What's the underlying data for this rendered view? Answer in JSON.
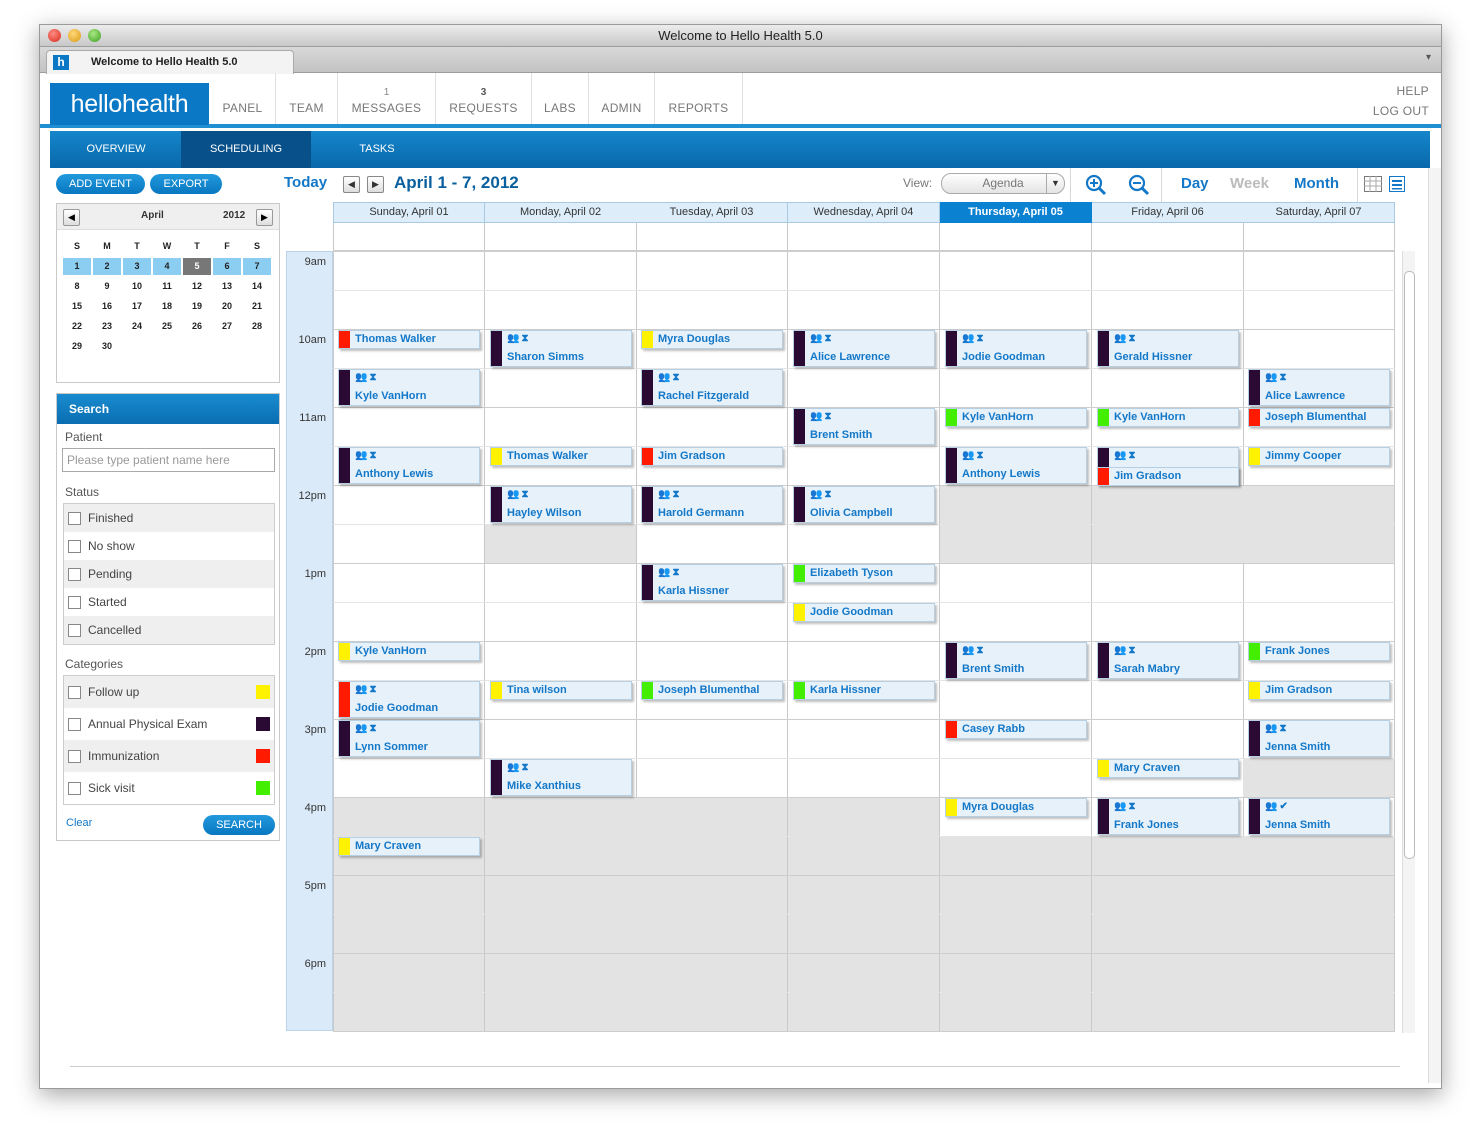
{
  "window": {
    "title": "Welcome to Hello Health 5.0",
    "tab_label": "Welcome to Hello Health 5.0",
    "favicon": "h"
  },
  "nav": {
    "logo": "hellohealth",
    "items": [
      {
        "label": "PANEL",
        "count": ""
      },
      {
        "label": "TEAM",
        "count": ""
      },
      {
        "label": "MESSAGES",
        "count": "1"
      },
      {
        "label": "REQUESTS",
        "count": "3"
      },
      {
        "label": "LABS",
        "count": ""
      },
      {
        "label": "ADMIN",
        "count": ""
      },
      {
        "label": "REPORTS",
        "count": ""
      }
    ],
    "help": "HELP",
    "logout": "LOG OUT"
  },
  "subnav": {
    "tabs": [
      "OVERVIEW",
      "SCHEDULING",
      "TASKS"
    ],
    "active": "SCHEDULING"
  },
  "actions": {
    "add_event": "ADD EVENT",
    "export": "EXPORT"
  },
  "toolbar": {
    "today": "Today",
    "range": "April 1 - 7, 2012",
    "view_label": "View:",
    "view_value": "Agenda",
    "views": [
      "Day",
      "Week",
      "Month"
    ],
    "active_view": "Week",
    "zoom_in_icon": "zoom-in-icon",
    "zoom_out_icon": "zoom-out-icon"
  },
  "minical": {
    "month": "April",
    "year": "2012",
    "weekdays": [
      "S",
      "M",
      "T",
      "W",
      "T",
      "F",
      "S"
    ],
    "weeks": [
      [
        "1",
        "2",
        "3",
        "4",
        "5",
        "6",
        "7"
      ],
      [
        "8",
        "9",
        "10",
        "11",
        "12",
        "13",
        "14"
      ],
      [
        "15",
        "16",
        "17",
        "18",
        "19",
        "20",
        "21"
      ],
      [
        "22",
        "23",
        "24",
        "25",
        "26",
        "27",
        "28"
      ],
      [
        "29",
        "30",
        "",
        "",
        "",
        "",
        ""
      ]
    ],
    "selected_week": 0,
    "today": "5"
  },
  "search": {
    "title": "Search",
    "patient_label": "Patient",
    "patient_placeholder": "Please type patient name here",
    "status_label": "Status",
    "statuses": [
      "Finished",
      "No show",
      "Pending",
      "Started",
      "Cancelled"
    ],
    "categories_label": "Categories",
    "categories": [
      {
        "name": "Follow up",
        "color": "#fff200"
      },
      {
        "name": "Annual Physical Exam",
        "color": "#2a0a33"
      },
      {
        "name": "Immunization",
        "color": "#ff1a00"
      },
      {
        "name": "Sick visit",
        "color": "#44ee00"
      }
    ],
    "clear": "Clear",
    "search_button": "SEARCH"
  },
  "calendar": {
    "days": [
      "Sunday, April 01",
      "Monday, April 02",
      "Tuesday, April 03",
      "Wednesday, April 04",
      "Thursday, April 05",
      "Friday, April 06",
      "Saturday, April 07"
    ],
    "today_index": 4,
    "hours": [
      "9am",
      "10am",
      "11am",
      "12pm",
      "1pm",
      "2pm",
      "3pm",
      "4pm",
      "5pm",
      "6pm"
    ],
    "category_colors": {
      "follow": "#fff200",
      "annual": "#2a0a33",
      "immun": "#ff1a00",
      "sick": "#44ee00"
    },
    "events": [
      {
        "day": 0,
        "slot": 2,
        "name": "Thomas Walker",
        "cat": "immun",
        "icons": false
      },
      {
        "day": 0,
        "slot": 3,
        "name": "Kyle VanHorn",
        "cat": "annual",
        "icons": true
      },
      {
        "day": 0,
        "slot": 5,
        "name": "Anthony Lewis",
        "cat": "annual",
        "icons": true
      },
      {
        "day": 0,
        "slot": 10,
        "name": "Kyle VanHorn",
        "cat": "follow",
        "icons": false
      },
      {
        "day": 0,
        "slot": 11,
        "name": "Jodie Goodman",
        "cat": "immun",
        "icons": true
      },
      {
        "day": 0,
        "slot": 12,
        "name": "Lynn Sommer",
        "cat": "annual",
        "icons": true
      },
      {
        "day": 0,
        "slot": 15,
        "name": "Mary Craven",
        "cat": "follow",
        "icons": false
      },
      {
        "day": 1,
        "slot": 2,
        "name": "Sharon Simms",
        "cat": "annual",
        "icons": true
      },
      {
        "day": 1,
        "slot": 5,
        "name": "Thomas Walker",
        "cat": "follow",
        "icons": false
      },
      {
        "day": 1,
        "slot": 6,
        "name": "Hayley Wilson",
        "cat": "annual",
        "icons": true
      },
      {
        "day": 1,
        "slot": 11,
        "name": "Tina wilson",
        "cat": "follow",
        "icons": false
      },
      {
        "day": 1,
        "slot": 13,
        "name": "Mike Xanthius",
        "cat": "annual",
        "icons": true
      },
      {
        "day": 2,
        "slot": 2,
        "name": "Myra Douglas",
        "cat": "follow",
        "icons": false
      },
      {
        "day": 2,
        "slot": 3,
        "name": "Rachel Fitzgerald",
        "cat": "annual",
        "icons": true
      },
      {
        "day": 2,
        "slot": 5,
        "name": "Jim Gradson",
        "cat": "immun",
        "icons": false
      },
      {
        "day": 2,
        "slot": 6,
        "name": "Harold Germann",
        "cat": "annual",
        "icons": true
      },
      {
        "day": 2,
        "slot": 8,
        "name": "Karla Hissner",
        "cat": "annual",
        "icons": true
      },
      {
        "day": 2,
        "slot": 11,
        "name": "Joseph Blumenthal",
        "cat": "sick",
        "icons": false
      },
      {
        "day": 3,
        "slot": 2,
        "name": "Alice Lawrence",
        "cat": "annual",
        "icons": true
      },
      {
        "day": 3,
        "slot": 4,
        "name": "Brent Smith",
        "cat": "annual",
        "icons": true
      },
      {
        "day": 3,
        "slot": 6,
        "name": "Olivia Campbell",
        "cat": "annual",
        "icons": true
      },
      {
        "day": 3,
        "slot": 8,
        "name": "Elizabeth Tyson",
        "cat": "sick",
        "icons": false
      },
      {
        "day": 3,
        "slot": 9,
        "name": "Jodie Goodman",
        "cat": "follow",
        "icons": false
      },
      {
        "day": 3,
        "slot": 11,
        "name": "Karla Hissner",
        "cat": "sick",
        "icons": false
      },
      {
        "day": 4,
        "slot": 2,
        "name": "Jodie Goodman",
        "cat": "annual",
        "icons": true
      },
      {
        "day": 4,
        "slot": 4,
        "name": "Kyle VanHorn",
        "cat": "sick",
        "icons": false
      },
      {
        "day": 4,
        "slot": 5,
        "name": "Anthony Lewis",
        "cat": "annual",
        "icons": true
      },
      {
        "day": 4,
        "slot": 10,
        "name": "Brent Smith",
        "cat": "annual",
        "icons": true
      },
      {
        "day": 4,
        "slot": 12,
        "name": "Casey Rabb",
        "cat": "immun",
        "icons": false
      },
      {
        "day": 4,
        "slot": 14,
        "name": "Myra Douglas",
        "cat": "follow",
        "icons": false
      },
      {
        "day": 5,
        "slot": 2,
        "name": "Gerald Hissner",
        "cat": "annual",
        "icons": true
      },
      {
        "day": 5,
        "slot": 4,
        "name": "Kyle VanHorn",
        "cat": "sick",
        "icons": false
      },
      {
        "day": 5,
        "slot": 5,
        "name": "Alice Lawrence",
        "cat": "annual",
        "icons": true
      },
      {
        "day": 5,
        "slot": 5.5,
        "name": "Jim Gradson",
        "cat": "immun",
        "icons": false
      },
      {
        "day": 5,
        "slot": 10,
        "name": "Sarah Mabry",
        "cat": "annual",
        "icons": true
      },
      {
        "day": 5,
        "slot": 13,
        "name": "Mary Craven",
        "cat": "follow",
        "icons": false
      },
      {
        "day": 5,
        "slot": 14,
        "name": "Frank Jones",
        "cat": "annual",
        "icons": true
      },
      {
        "day": 6,
        "slot": 3,
        "name": "Alice Lawrence",
        "cat": "annual",
        "icons": true
      },
      {
        "day": 6,
        "slot": 4,
        "name": "Joseph Blumenthal",
        "cat": "immun",
        "icons": false
      },
      {
        "day": 6,
        "slot": 5,
        "name": "Jimmy Cooper",
        "cat": "follow",
        "icons": false
      },
      {
        "day": 6,
        "slot": 10,
        "name": "Frank Jones",
        "cat": "sick",
        "icons": false
      },
      {
        "day": 6,
        "slot": 11,
        "name": "Jim Gradson",
        "cat": "follow",
        "icons": false
      },
      {
        "day": 6,
        "slot": 12,
        "name": "Jenna Smith",
        "cat": "annual",
        "icons": true
      },
      {
        "day": 6,
        "slot": 14,
        "name": "Jenna Smith",
        "cat": "annual",
        "icons": true,
        "done": true
      }
    ]
  }
}
